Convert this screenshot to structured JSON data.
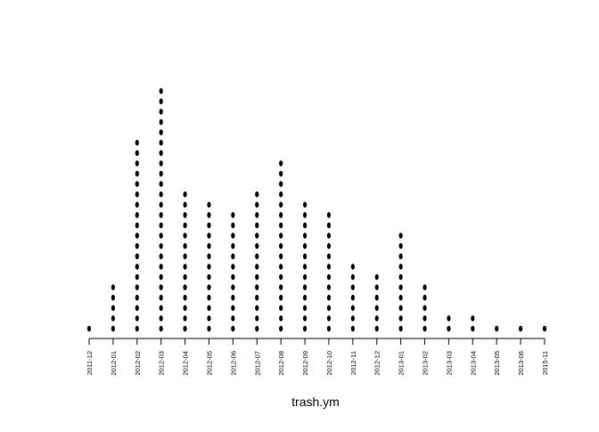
{
  "chart_data": {
    "type": "scatter",
    "subtype": "stacked-dot-plot",
    "title": "",
    "xlabel": "trash.ym",
    "ylabel": "",
    "categories": [
      "2011-12",
      "2012-01",
      "2012-02",
      "2012-03",
      "2012-04",
      "2012-05",
      "2012-06",
      "2012-07",
      "2012-08",
      "2012-09",
      "2012-10",
      "2012-11",
      "2012-12",
      "2013-01",
      "2013-02",
      "2013-03",
      "2013-04",
      "2013-05",
      "2013-06",
      "2015-11"
    ],
    "values": [
      1,
      5,
      19,
      24,
      14,
      13,
      12,
      14,
      17,
      13,
      12,
      7,
      6,
      10,
      5,
      2,
      2,
      1,
      1,
      1
    ],
    "point_color": "#000000",
    "grid": false,
    "legend": "none"
  }
}
